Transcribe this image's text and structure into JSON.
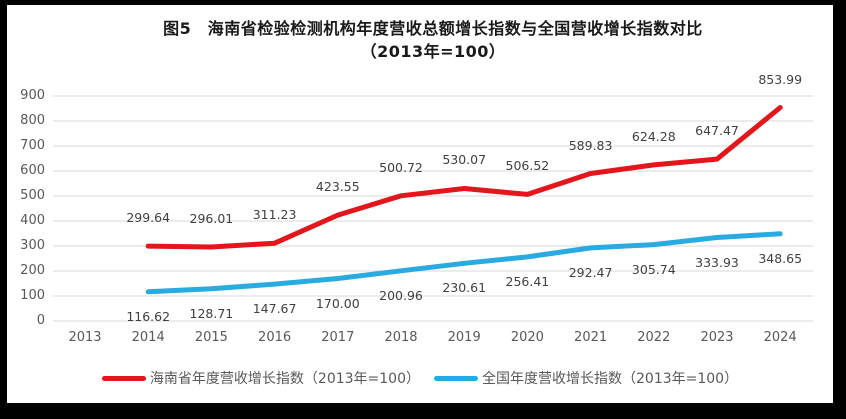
{
  "colors": {
    "frame": "#000000",
    "background": "#ffffff",
    "grid": "#d9d9d9",
    "axis_text": "#595959",
    "data_label_text": "#404040",
    "title_text": "#1a1a1a",
    "hainan_red": "#e3161c",
    "national_blue": "#29aae1"
  },
  "chart_data": {
    "type": "line",
    "title": "图5　海南省检验检测机构年度营收总额增长指数与全国营收增长指数对比",
    "subtitle": "（2013年=100）",
    "categories": [
      "2013",
      "2014",
      "2015",
      "2016",
      "2017",
      "2018",
      "2019",
      "2020",
      "2021",
      "2022",
      "2023",
      "2024"
    ],
    "series": [
      {
        "id": "hainan-series",
        "name": "海南省年度营收增长指数（2013年=100）",
        "color": "#e3161c",
        "label_position": "above",
        "values": [
          null,
          299.64,
          296.01,
          311.23,
          423.55,
          500.72,
          530.07,
          506.52,
          589.83,
          624.28,
          647.47,
          853.99
        ]
      },
      {
        "id": "national-series",
        "name": "全国年度营收增长指数（2013年=100）",
        "color": "#29aae1",
        "label_position": "below",
        "values": [
          null,
          116.62,
          128.71,
          147.67,
          170.0,
          200.96,
          230.61,
          256.41,
          292.47,
          305.74,
          333.93,
          348.65
        ]
      }
    ],
    "ylim": [
      0,
      900
    ],
    "yticks": [
      0,
      100,
      200,
      300,
      400,
      500,
      600,
      700,
      800,
      900
    ],
    "grid": true,
    "legend_position": "bottom",
    "data_labels_decimals": 2
  }
}
